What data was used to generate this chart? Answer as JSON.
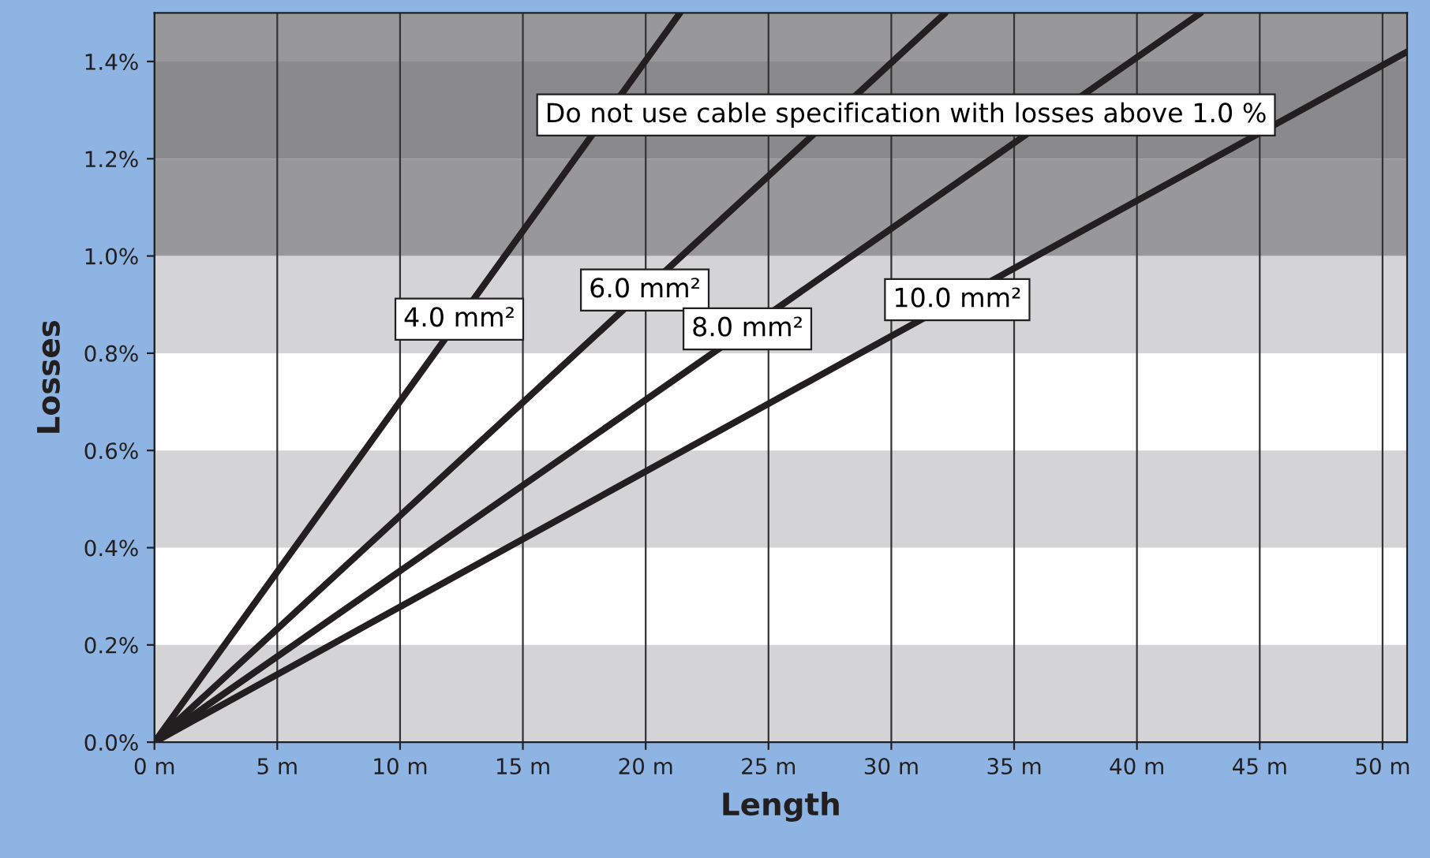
{
  "chart_data": {
    "type": "line",
    "xlabel": "Length",
    "ylabel": "Losses",
    "xlim": [
      0,
      51
    ],
    "ylim": [
      0,
      1.5
    ],
    "xticks": [
      {
        "value": 0,
        "label": "0 m"
      },
      {
        "value": 5,
        "label": "5 m"
      },
      {
        "value": 10,
        "label": "10 m"
      },
      {
        "value": 15,
        "label": "15 m"
      },
      {
        "value": 20,
        "label": "20 m"
      },
      {
        "value": 25,
        "label": "25 m"
      },
      {
        "value": 30,
        "label": "30 m"
      },
      {
        "value": 35,
        "label": "35 m"
      },
      {
        "value": 40,
        "label": "40 m"
      },
      {
        "value": 45,
        "label": "45 m"
      },
      {
        "value": 50,
        "label": "50 m"
      }
    ],
    "yticks": [
      {
        "value": 0,
        "label": "0.0%"
      },
      {
        "value": 0.2,
        "label": "0.2%"
      },
      {
        "value": 0.4,
        "label": "0.4%"
      },
      {
        "value": 0.6,
        "label": "0.6%"
      },
      {
        "value": 0.8,
        "label": "0.8%"
      },
      {
        "value": 1.0,
        "label": "1.0%"
      },
      {
        "value": 1.2,
        "label": "1.2%"
      },
      {
        "value": 1.4,
        "label": "1.4%"
      }
    ],
    "grid": "x",
    "line_style": "solid",
    "marker": "none",
    "series": [
      {
        "name": "4.0 mm²",
        "color": "#231f20",
        "x": [
          0,
          21.4
        ],
        "values": [
          0,
          1.5
        ]
      },
      {
        "name": "6.0 mm²",
        "color": "#231f20",
        "x": [
          0,
          32.2
        ],
        "values": [
          0,
          1.5
        ]
      },
      {
        "name": "8.0 mm²",
        "color": "#231f20",
        "x": [
          0,
          42.6
        ],
        "values": [
          0,
          1.5
        ]
      },
      {
        "name": "10.0 mm²",
        "color": "#231f20",
        "x": [
          0,
          51
        ],
        "values": [
          0,
          1.42
        ]
      }
    ],
    "bands": [
      {
        "axis": "y",
        "from": 0,
        "to": 0.2,
        "color": "#d4d4d6"
      },
      {
        "axis": "y",
        "from": 0.4,
        "to": 0.6,
        "color": "#d4d4d6"
      },
      {
        "axis": "y",
        "from": 0.8,
        "to": 1.0,
        "color": "#d4d4d6"
      },
      {
        "axis": "y",
        "from": 1.0,
        "to": 1.2,
        "color": "#98989a"
      },
      {
        "axis": "y",
        "from": 1.2,
        "to": 1.4,
        "color": "#8a8a8c"
      },
      {
        "axis": "y",
        "from": 1.4,
        "to": 1.5,
        "color": "#98989a"
      }
    ],
    "annotations": [
      "Do not use cable specification with losses above 1.0 %"
    ]
  }
}
